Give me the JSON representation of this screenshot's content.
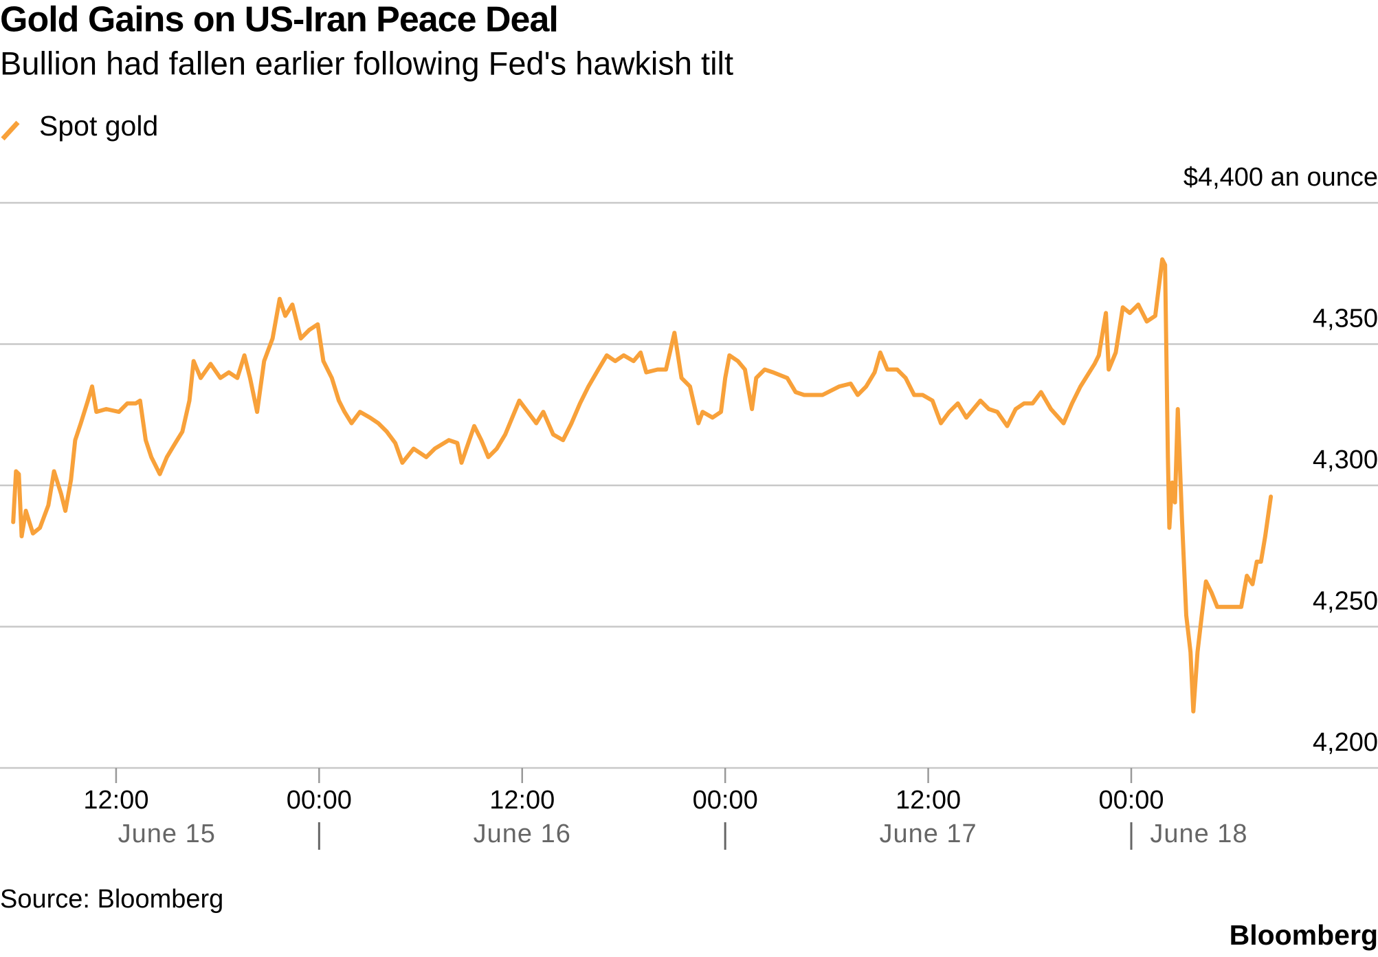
{
  "chart_data": {
    "type": "line",
    "title": "Gold Gains on US-Iran Peace Deal",
    "subtitle": "Bullion had fallen earlier following Fed's hawkish tilt",
    "x": [
      "June 15 05:55",
      "June 15 06:05",
      "June 15 06:15",
      "June 15 06:25",
      "June 15 06:40",
      "June 15 07:05",
      "June 15 07:30",
      "June 15 08:00",
      "June 15 08:20",
      "June 15 08:45",
      "June 15 09:00",
      "June 15 09:20",
      "June 15 09:35",
      "June 15 09:55",
      "June 15 10:20",
      "June 15 10:35",
      "June 15 10:50",
      "June 15 11:25",
      "June 15 12:10",
      "June 15 12:40",
      "June 15 13:10",
      "June 15 13:25",
      "June 15 13:45",
      "June 15 14:05",
      "June 15 14:35",
      "June 15 15:00",
      "June 15 15:30",
      "June 15 15:55",
      "June 15 16:20",
      "June 15 16:35",
      "June 15 17:00",
      "June 15 17:35",
      "June 15 18:10",
      "June 15 18:40",
      "June 15 19:10",
      "June 15 19:35",
      "June 15 19:55",
      "June 15 20:20",
      "June 15 20:45",
      "June 15 21:15",
      "June 15 21:40",
      "June 15 22:00",
      "June 15 22:25",
      "June 15 22:55",
      "June 15 23:25",
      "June 15 23:55",
      "June 16 00:15",
      "June 16 00:45",
      "June 16 01:10",
      "June 16 01:30",
      "June 16 01:55",
      "June 16 02:25",
      "June 16 03:00",
      "June 16 03:30",
      "June 16 04:00",
      "June 16 04:30",
      "June 16 04:55",
      "June 16 05:35",
      "June 16 06:20",
      "June 16 06:50",
      "June 16 07:40",
      "June 16 08:10",
      "June 16 08:25",
      "June 16 09:10",
      "June 16 09:35",
      "June 16 10:00",
      "June 16 10:30",
      "June 16 11:00",
      "June 16 11:50",
      "June 16 12:20",
      "June 16 12:50",
      "June 16 13:15",
      "June 16 13:50",
      "June 16 14:25",
      "June 16 14:55",
      "June 16 15:25",
      "June 16 15:55",
      "June 16 16:30",
      "June 16 17:00",
      "June 16 17:30",
      "June 16 18:00",
      "June 16 18:35",
      "June 16 19:00",
      "June 16 19:20",
      "June 16 20:00",
      "June 16 20:30",
      "June 16 21:00",
      "June 16 21:25",
      "June 16 21:55",
      "June 16 22:25",
      "June 16 22:40",
      "June 16 23:15",
      "June 16 23:45",
      "June 17 00:00",
      "June 17 00:15",
      "June 17 00:45",
      "June 17 01:10",
      "June 17 01:35",
      "June 17 01:50",
      "June 17 02:20",
      "June 17 02:50",
      "June 17 03:40",
      "June 17 04:10",
      "June 17 04:40",
      "June 17 05:45",
      "June 17 06:45",
      "June 17 07:25",
      "June 17 07:50",
      "June 17 08:20",
      "June 17 08:50",
      "June 17 09:10",
      "June 17 09:35",
      "June 17 10:10",
      "June 17 10:40",
      "June 17 11:10",
      "June 17 11:40",
      "June 17 12:15",
      "June 17 12:45",
      "June 17 13:15",
      "June 17 13:45",
      "June 17 14:15",
      "June 17 15:05",
      "June 17 15:35",
      "June 17 16:05",
      "June 17 16:40",
      "June 17 17:10",
      "June 17 17:40",
      "June 17 18:10",
      "June 17 18:40",
      "June 17 19:15",
      "June 17 20:00",
      "June 17 20:30",
      "June 17 21:00",
      "June 17 21:50",
      "June 17 22:05",
      "June 17 22:30",
      "June 17 22:40",
      "June 17 23:05",
      "June 17 23:30",
      "June 17 23:55",
      "June 18 00:25",
      "June 18 00:55",
      "June 18 01:25",
      "June 18 01:50",
      "June 18 02:00",
      "June 18 02:10",
      "June 18 02:15",
      "June 18 02:25",
      "June 18 02:35",
      "June 18 02:45",
      "June 18 03:00",
      "June 18 03:15",
      "June 18 03:30",
      "June 18 03:40",
      "June 18 03:55",
      "June 18 04:10",
      "June 18 04:25",
      "June 18 04:45",
      "June 18 05:05",
      "June 18 05:50",
      "June 18 06:30",
      "June 18 06:50",
      "June 18 07:10",
      "June 18 07:25",
      "June 18 07:40",
      "June 18 07:55",
      "June 18 08:15"
    ],
    "series": [
      {
        "name": "Spot gold",
        "color": "#f8a13a",
        "values": [
          4287,
          4305,
          4304,
          4282,
          4291,
          4283,
          4285,
          4293,
          4305,
          4297,
          4291,
          4302,
          4316,
          4322,
          4330,
          4335,
          4326,
          4327,
          4326,
          4329,
          4329,
          4330,
          4316,
          4310,
          4304,
          4310,
          4315,
          4319,
          4330,
          4344,
          4338,
          4343,
          4338,
          4340,
          4338,
          4346,
          4338,
          4326,
          4344,
          4352,
          4366,
          4360,
          4364,
          4352,
          4355,
          4357,
          4344,
          4338,
          4330,
          4326,
          4322,
          4326,
          4324,
          4322,
          4319,
          4315,
          4308,
          4313,
          4310,
          4313,
          4316,
          4315,
          4308,
          4321,
          4316,
          4310,
          4313,
          4318,
          4330,
          4326,
          4322,
          4326,
          4318,
          4316,
          4322,
          4329,
          4335,
          4341,
          4346,
          4344,
          4346,
          4344,
          4347,
          4340,
          4341,
          4341,
          4354,
          4338,
          4335,
          4322,
          4326,
          4324,
          4326,
          4338,
          4346,
          4344,
          4341,
          4327,
          4338,
          4341,
          4340,
          4338,
          4333,
          4332,
          4332,
          4335,
          4336,
          4332,
          4335,
          4340,
          4347,
          4341,
          4341,
          4338,
          4332,
          4332,
          4330,
          4322,
          4326,
          4329,
          4324,
          4330,
          4327,
          4326,
          4321,
          4327,
          4329,
          4329,
          4333,
          4327,
          4322,
          4329,
          4335,
          4343,
          4346,
          4361,
          4341,
          4347,
          4363,
          4361,
          4364,
          4358,
          4360,
          4380,
          4378,
          4310,
          4285,
          4301,
          4294,
          4327,
          4288,
          4254,
          4241,
          4220,
          4241,
          4254,
          4266,
          4262,
          4257,
          4257,
          4257,
          4268,
          4265,
          4273,
          4273,
          4282,
          4296
        ]
      }
    ],
    "xlim": [
      "June 15 05:40",
      "June 18 14:35"
    ],
    "xticks": [
      {
        "value": "June 15 12:00",
        "label": "12:00"
      },
      {
        "value": "June 16 00:00",
        "label": "00:00"
      },
      {
        "value": "June 16 12:00",
        "label": "12:00"
      },
      {
        "value": "June 17 00:00",
        "label": "00:00"
      },
      {
        "value": "June 17 12:00",
        "label": "12:00"
      },
      {
        "value": "June 18 00:00",
        "label": "00:00"
      }
    ],
    "x_date_labels": [
      {
        "value": "June 15 15:00",
        "label": "June 15"
      },
      {
        "value": "June 16 12:00",
        "label": "June 16"
      },
      {
        "value": "June 17 12:00",
        "label": "June 17"
      },
      {
        "value": "June 18 04:00",
        "label": "June 18"
      }
    ],
    "ylim": [
      4200,
      4400
    ],
    "yticks": [
      {
        "value": 4200,
        "label": "4,200"
      },
      {
        "value": 4250,
        "label": "4,250"
      },
      {
        "value": 4300,
        "label": "4,300"
      },
      {
        "value": 4350,
        "label": "4,350"
      },
      {
        "value": 4400,
        "label": "$4,400 an ounce"
      }
    ],
    "grid": true,
    "source": "Source: Bloomberg",
    "brand": "Bloomberg"
  }
}
